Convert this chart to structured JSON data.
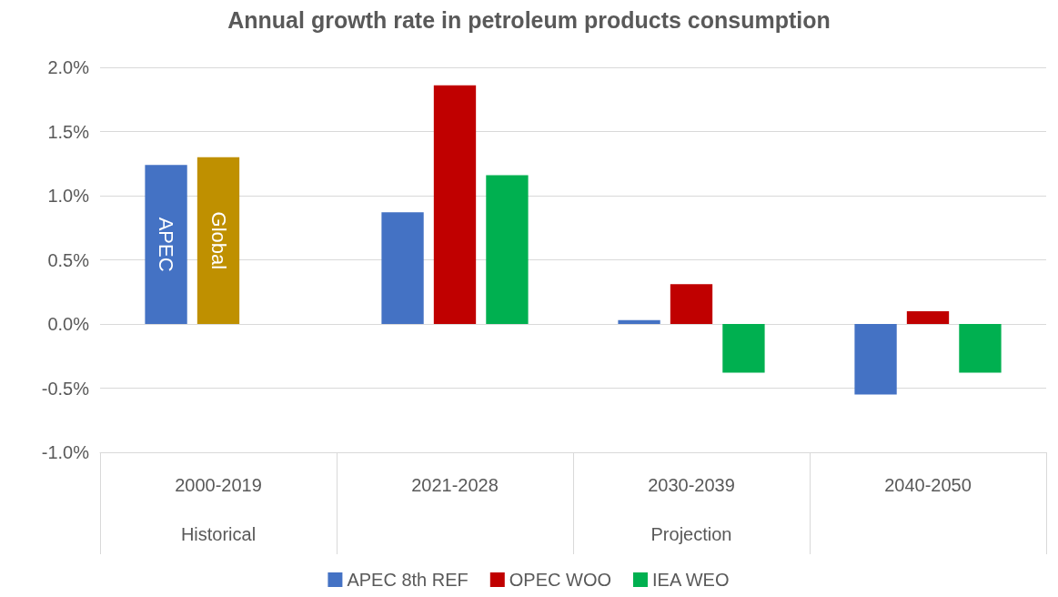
{
  "chart_data": {
    "type": "bar",
    "title": "Annual growth rate in petroleum products consumption",
    "categories": [
      "2000-2019",
      "2021-2028",
      "2030-2039",
      "2040-2050"
    ],
    "series": [
      {
        "name": "APEC 8th REF",
        "color": "#4472c4",
        "values": [
          1.24,
          0.87,
          0.03,
          -0.55
        ],
        "value_labels": [
          "APEC",
          null,
          null,
          null
        ]
      },
      {
        "name": "OPEC WOO",
        "color": "#c00000",
        "colors": [
          "#bf9000",
          "#c00000",
          "#c00000",
          "#c00000"
        ],
        "values": [
          1.3,
          1.86,
          0.31,
          0.1
        ],
        "value_labels": [
          "Global",
          null,
          null,
          null
        ]
      },
      {
        "name": "IEA WEO",
        "color": "#00b050",
        "values": [
          null,
          1.16,
          -0.38,
          -0.38
        ]
      }
    ],
    "ylim": [
      -1,
      2
    ],
    "yticks": [
      {
        "value": -1,
        "label": "-1.0%"
      },
      {
        "value": -0.5,
        "label": "-0.5%"
      },
      {
        "value": 0,
        "label": "0.0%"
      },
      {
        "value": 0.5,
        "label": "0.5%"
      },
      {
        "value": 1,
        "label": "1.0%"
      },
      {
        "value": 1.5,
        "label": "1.5%"
      },
      {
        "value": 2,
        "label": "2.0%"
      }
    ],
    "annotations": [
      "Historical",
      "Projection"
    ],
    "grid": "y",
    "legend": "bottom"
  }
}
